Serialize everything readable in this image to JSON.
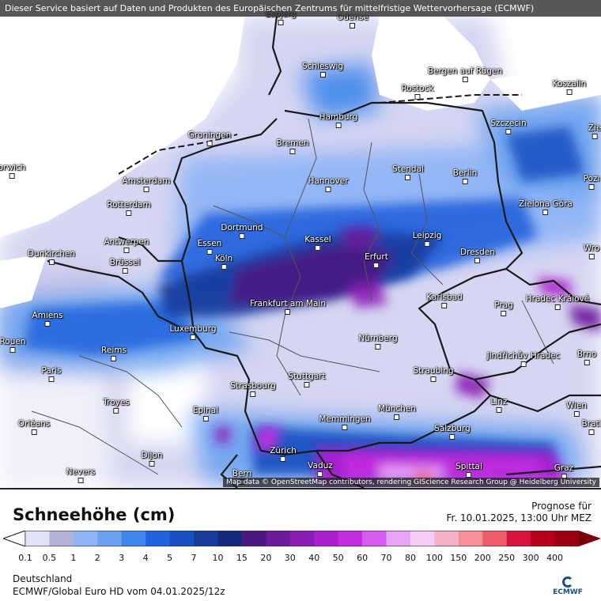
{
  "header": {
    "service_text": "Dieser Service basiert auf Daten und Produkten des Europäischen Zentrums für mittelfristige Wettervorhersage (ECMWF)"
  },
  "map": {
    "attribution": "Map data © OpenStreetMap contributors, rendering GIScience Research Group @ Heidelberg University",
    "colors": {
      "background": "#ffffff",
      "ground_lightest": "#e2e2f6",
      "border": "#1a1a1a"
    },
    "cities": [
      {
        "name": "Esbjerg"
      },
      {
        "name": "Odense"
      },
      {
        "name": "Schleswig"
      },
      {
        "name": "Bergen auf Rügen"
      },
      {
        "name": "Rostock"
      },
      {
        "name": "Koszalin"
      },
      {
        "name": "Hamburg"
      },
      {
        "name": "Szczecin"
      },
      {
        "name": "Groningen"
      },
      {
        "name": "Bremen"
      },
      {
        "name": "orwich"
      },
      {
        "name": "Amsterdam"
      },
      {
        "name": "Stendal"
      },
      {
        "name": "Hannover"
      },
      {
        "name": "Berlin"
      },
      {
        "name": "Zielona Góra"
      },
      {
        "name": "Rotterdam"
      },
      {
        "name": "Dortmund"
      },
      {
        "name": "Essen"
      },
      {
        "name": "Kassel"
      },
      {
        "name": "Leipzig"
      },
      {
        "name": "Antwerpen"
      },
      {
        "name": "Dunkirchen"
      },
      {
        "name": "Köln"
      },
      {
        "name": "Brüssel"
      },
      {
        "name": "Erfurt"
      },
      {
        "name": "Dresden"
      },
      {
        "name": "Frankfurt am Main"
      },
      {
        "name": "Karlsbad"
      },
      {
        "name": "Hradec Králové"
      },
      {
        "name": "Amiens"
      },
      {
        "name": "Prag"
      },
      {
        "name": "Luxemburg"
      },
      {
        "name": "Nürnberg"
      },
      {
        "name": "Rouen"
      },
      {
        "name": "Reims"
      },
      {
        "name": "Jindřichův Hradec"
      },
      {
        "name": "Brno"
      },
      {
        "name": "Paris"
      },
      {
        "name": "Straubing"
      },
      {
        "name": "Stuttgart"
      },
      {
        "name": "Strasbourg"
      },
      {
        "name": "Troyes"
      },
      {
        "name": "Linz"
      },
      {
        "name": "Wien"
      },
      {
        "name": "Epinal"
      },
      {
        "name": "München"
      },
      {
        "name": "Memmingen"
      },
      {
        "name": "Orléans"
      },
      {
        "name": "Salzburg"
      },
      {
        "name": "Zürich"
      },
      {
        "name": "Dijon"
      },
      {
        "name": "Vaduz"
      },
      {
        "name": "Nevers"
      },
      {
        "name": "Bern"
      },
      {
        "name": "Spittal"
      },
      {
        "name": "Graz"
      },
      {
        "name": "Zie"
      },
      {
        "name": "Pozı"
      },
      {
        "name": "Wro"
      },
      {
        "name": "Brati"
      }
    ]
  },
  "legend": {
    "title": "Schneehöhe (cm)",
    "forecast_label": "Prognose für",
    "forecast_time": "Fr. 10.01.2025, 13:00 Uhr MEZ",
    "region": "Deutschland",
    "model": "ECMWF/Global Euro HD vom  04.01.2025/12z",
    "logo_text": "ECMWF",
    "ticks": [
      "0.1",
      "0.5",
      "1",
      "2",
      "3",
      "4",
      "5",
      "7",
      "10",
      "15",
      "20",
      "30",
      "40",
      "50",
      "60",
      "70",
      "80",
      "100",
      "150",
      "200",
      "250",
      "300",
      "400"
    ],
    "colors": [
      "#e2e2f6",
      "#b4b4d8",
      "#8cb4f6",
      "#6aa2f0",
      "#3f86ec",
      "#2163dc",
      "#1a4fc0",
      "#183d9e",
      "#162a7c",
      "#4a1883",
      "#6c1a9a",
      "#8c1cb6",
      "#aa20cc",
      "#c22ee0",
      "#d65cf0",
      "#e8a4f6",
      "#f4ccf6",
      "#f4b0c4",
      "#f68f99",
      "#ef5c6b",
      "#d8143c",
      "#b8001a",
      "#9a0010",
      "#7a0008"
    ]
  }
}
